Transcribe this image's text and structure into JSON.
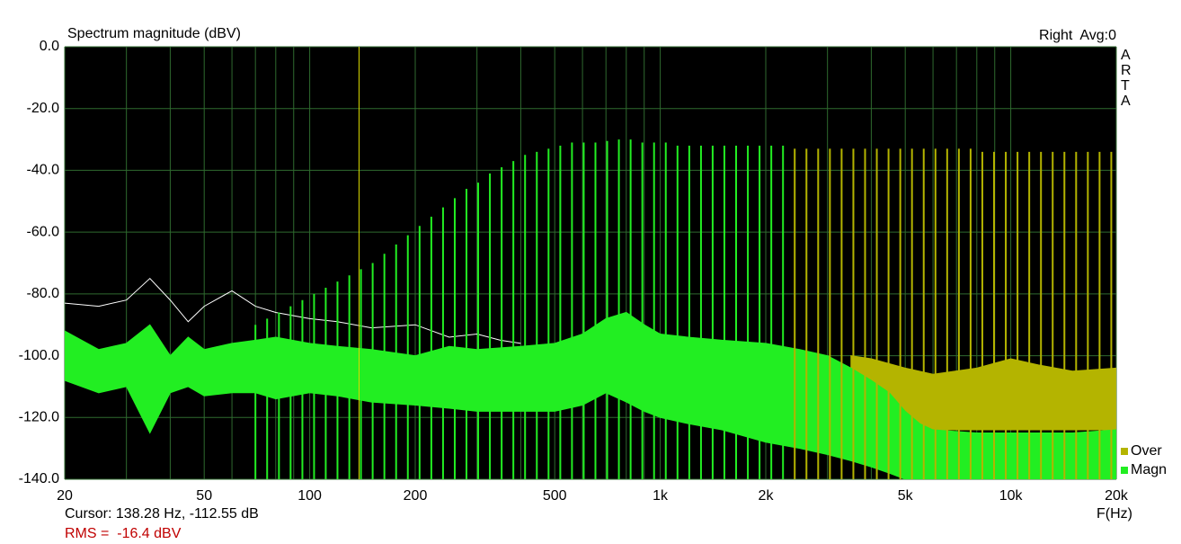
{
  "chart_data": {
    "type": "spectrum",
    "title": "Spectrum magnitude (dBV)",
    "top_right": "Right  Avg:0",
    "logo": [
      "A",
      "R",
      "T",
      "A"
    ],
    "xlabel": "F(Hz)",
    "cursor": {
      "text": "Cursor: 138.28 Hz, -112.55 dB",
      "x": 138.28,
      "color": "#d8d800"
    },
    "rms": "RMS =  -16.4 dBV",
    "xscale": "log",
    "xlim": [
      20,
      20000
    ],
    "ylim": [
      -140,
      0
    ],
    "xticks": [
      20,
      50,
      100,
      200,
      500,
      {
        "value": 1000,
        "label": "1k"
      },
      {
        "value": 2000,
        "label": "2k"
      },
      {
        "value": 5000,
        "label": "5k"
      },
      {
        "value": 10000,
        "label": "10k"
      },
      {
        "value": 20000,
        "label": "20k"
      }
    ],
    "xgrid_minor": [
      30,
      40,
      60,
      70,
      80,
      90,
      300,
      400,
      600,
      700,
      800,
      900,
      3000,
      4000,
      6000,
      7000,
      8000,
      9000
    ],
    "yticks": [
      {
        "value": 0,
        "label": "0.0"
      },
      {
        "value": -20,
        "label": "-20.0"
      },
      {
        "value": -40,
        "label": "-40.0"
      },
      {
        "value": -60,
        "label": "-60.0"
      },
      {
        "value": -80,
        "label": "-80.0"
      },
      {
        "value": -100,
        "label": "-100.0"
      },
      {
        "value": -120,
        "label": "-120.0"
      },
      {
        "value": -140,
        "label": "-140.0"
      }
    ],
    "grid": true,
    "legend": "lower right",
    "series": [
      {
        "name": "Over",
        "color": "#b4b400",
        "x": [
          3500,
          4000,
          5000,
          6000,
          8000,
          10000,
          12000,
          15000,
          20000
        ],
        "values": [
          -100,
          -101,
          -104,
          -106,
          -104,
          -101,
          -103,
          -105,
          -104
        ],
        "lower": [
          -118,
          -120,
          -122,
          -124,
          -124,
          -124,
          -124,
          -124,
          -124
        ],
        "peak_x": [
          2419,
          2613,
          2822,
          3048,
          3292,
          3556,
          3840,
          4148,
          4480,
          4839,
          5226,
          5645,
          6097,
          6585,
          7112,
          7681,
          8296,
          8960,
          9678,
          10453,
          11290,
          12194,
          13170,
          14224,
          15362,
          16592,
          17920,
          19354
        ],
        "peak_values": [
          -33,
          -33,
          -33,
          -33,
          -33,
          -33,
          -33,
          -33,
          -33,
          -33,
          -33,
          -33,
          -33,
          -33,
          -33,
          -33,
          -34,
          -34,
          -34,
          -34,
          -34,
          -34,
          -34,
          -34,
          -34,
          -34,
          -34,
          -34
        ]
      },
      {
        "name": "Magn",
        "color": "#22ee22",
        "x": [
          20,
          25,
          30,
          35,
          40,
          45,
          50,
          60,
          70,
          80,
          100,
          120,
          150,
          200,
          250,
          300,
          400,
          500,
          600,
          700,
          800,
          900,
          1000,
          1200,
          1500,
          2000,
          2500,
          3000,
          3500,
          4000,
          4500,
          5000,
          5500,
          6000,
          8000,
          10000,
          15000,
          20000
        ],
        "values": [
          -92,
          -98,
          -96,
          -90,
          -100,
          -94,
          -98,
          -96,
          -95,
          -94,
          -96,
          -97,
          -98,
          -100,
          -97,
          -98,
          -97,
          -96,
          -93,
          -88,
          -86,
          -90,
          -93,
          -94,
          -95,
          -96,
          -98,
          -100,
          -104,
          -108,
          -112,
          -118,
          -122,
          -124,
          -125,
          -125,
          -125,
          -124
        ],
        "lower": [
          -108,
          -112,
          -110,
          -125,
          -112,
          -110,
          -113,
          -112,
          -112,
          -114,
          -112,
          -113,
          -115,
          -116,
          -117,
          -118,
          -118,
          -118,
          -116,
          -112,
          -115,
          -118,
          -120,
          -122,
          -124,
          -128,
          -130,
          -132,
          -134,
          -136,
          -138,
          -140,
          -140,
          -140,
          -140,
          -140,
          -140,
          -140
        ],
        "peak_x": [
          70,
          75.6,
          81.7,
          88.2,
          95.3,
          102.9,
          111.1,
          120,
          129.7,
          140,
          151.2,
          163.3,
          176.4,
          190.5,
          205.8,
          222.3,
          240.1,
          259.3,
          280,
          302.4,
          326.6,
          352.8,
          381,
          411.5,
          444.5,
          480.1,
          518.6,
          560,
          604.9,
          653.3,
          705.7,
          762.1,
          823.1,
          889,
          960.2,
          1037,
          1120,
          1210,
          1307,
          1411,
          1524,
          1646,
          1778,
          1920,
          2074,
          2240
        ],
        "peak_values": [
          -90,
          -88,
          -86,
          -84,
          -82,
          -80,
          -78,
          -76,
          -74,
          -72,
          -70,
          -67,
          -64,
          -61,
          -58,
          -55,
          -52,
          -49,
          -46,
          -44,
          -41,
          -39,
          -37,
          -35,
          -34,
          -33,
          -32,
          -31,
          -31,
          -31,
          -30.5,
          -30,
          -30,
          -31,
          -31,
          -31,
          -32,
          -32,
          -32,
          -32,
          -32,
          -32,
          -32,
          -32,
          -32,
          -32
        ]
      },
      {
        "color": "#ffffff",
        "x": [
          20,
          25,
          30,
          35,
          40,
          45,
          50,
          60,
          70,
          80,
          100,
          120,
          150,
          200,
          250,
          300,
          350,
          400
        ],
        "values": [
          -83,
          -84,
          -82,
          -75,
          -82,
          -89,
          -84,
          -79,
          -84,
          -86,
          -88,
          -89,
          -91,
          -90,
          -94,
          -93,
          -95,
          -96
        ]
      }
    ]
  }
}
